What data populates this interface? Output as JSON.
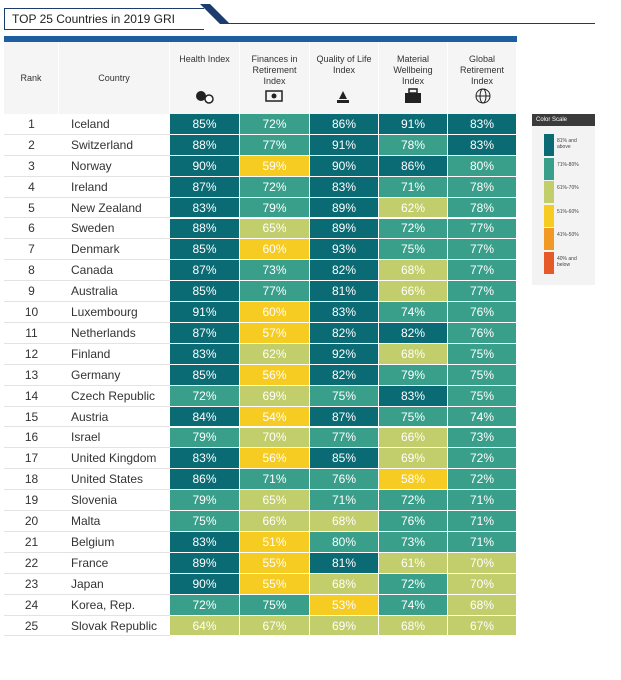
{
  "title": "TOP 25 Countries in 2019 GRI",
  "table": {
    "columns": [
      "Rank",
      "Country",
      "Health Index",
      "Finances in Retirement Index",
      "Quality of Life Index",
      "Material Wellbeing Index",
      "Global Retirement Index"
    ],
    "rows": [
      [
        1,
        "Iceland",
        "85%",
        "72%",
        "86%",
        "91%",
        "83%"
      ],
      [
        2,
        "Switzerland",
        "88%",
        "77%",
        "91%",
        "78%",
        "83%"
      ],
      [
        3,
        "Norway",
        "90%",
        "59%",
        "90%",
        "86%",
        "80%"
      ],
      [
        4,
        "Ireland",
        "87%",
        "72%",
        "83%",
        "71%",
        "78%"
      ],
      [
        5,
        "New Zealand",
        "83%",
        "79%",
        "89%",
        "62%",
        "78%"
      ],
      [
        6,
        "Sweden",
        "88%",
        "65%",
        "89%",
        "72%",
        "77%"
      ],
      [
        7,
        "Denmark",
        "85%",
        "60%",
        "93%",
        "75%",
        "77%"
      ],
      [
        8,
        "Canada",
        "87%",
        "73%",
        "82%",
        "68%",
        "77%"
      ],
      [
        9,
        "Australia",
        "85%",
        "77%",
        "81%",
        "66%",
        "77%"
      ],
      [
        10,
        "Luxembourg",
        "91%",
        "60%",
        "83%",
        "74%",
        "76%"
      ],
      [
        11,
        "Netherlands",
        "87%",
        "57%",
        "82%",
        "82%",
        "76%"
      ],
      [
        12,
        "Finland",
        "83%",
        "62%",
        "92%",
        "68%",
        "75%"
      ],
      [
        13,
        "Germany",
        "85%",
        "56%",
        "82%",
        "79%",
        "75%"
      ],
      [
        14,
        "Czech Republic",
        "72%",
        "69%",
        "75%",
        "83%",
        "75%"
      ],
      [
        15,
        "Austria",
        "84%",
        "54%",
        "87%",
        "75%",
        "74%"
      ],
      [
        16,
        "Israel",
        "79%",
        "70%",
        "77%",
        "66%",
        "73%"
      ],
      [
        17,
        "United Kingdom",
        "83%",
        "56%",
        "85%",
        "69%",
        "72%"
      ],
      [
        18,
        "United States",
        "86%",
        "71%",
        "76%",
        "58%",
        "72%"
      ],
      [
        19,
        "Slovenia",
        "79%",
        "65%",
        "71%",
        "72%",
        "71%"
      ],
      [
        20,
        "Malta",
        "75%",
        "66%",
        "68%",
        "76%",
        "71%"
      ],
      [
        21,
        "Belgium",
        "83%",
        "51%",
        "80%",
        "73%",
        "71%"
      ],
      [
        22,
        "France",
        "89%",
        "55%",
        "81%",
        "61%",
        "70%"
      ],
      [
        23,
        "Japan",
        "90%",
        "55%",
        "68%",
        "72%",
        "70%"
      ],
      [
        24,
        "Korea, Rep.",
        "72%",
        "75%",
        "53%",
        "74%",
        "68%"
      ],
      [
        25,
        "Slovak Republic",
        "64%",
        "67%",
        "69%",
        "68%",
        "67%"
      ]
    ]
  },
  "legend": {
    "title": "Color Scale",
    "entries": [
      {
        "label": "81% and above",
        "color": "#0b6b74"
      },
      {
        "label": "71%-80%",
        "color": "#3a9f8a"
      },
      {
        "label": "61%-70%",
        "color": "#c2cd6b"
      },
      {
        "label": "51%-60%",
        "color": "#f6cb22"
      },
      {
        "label": "41%-50%",
        "color": "#f09a25"
      },
      {
        "label": "40% and below",
        "color": "#e65a2a"
      }
    ]
  }
}
